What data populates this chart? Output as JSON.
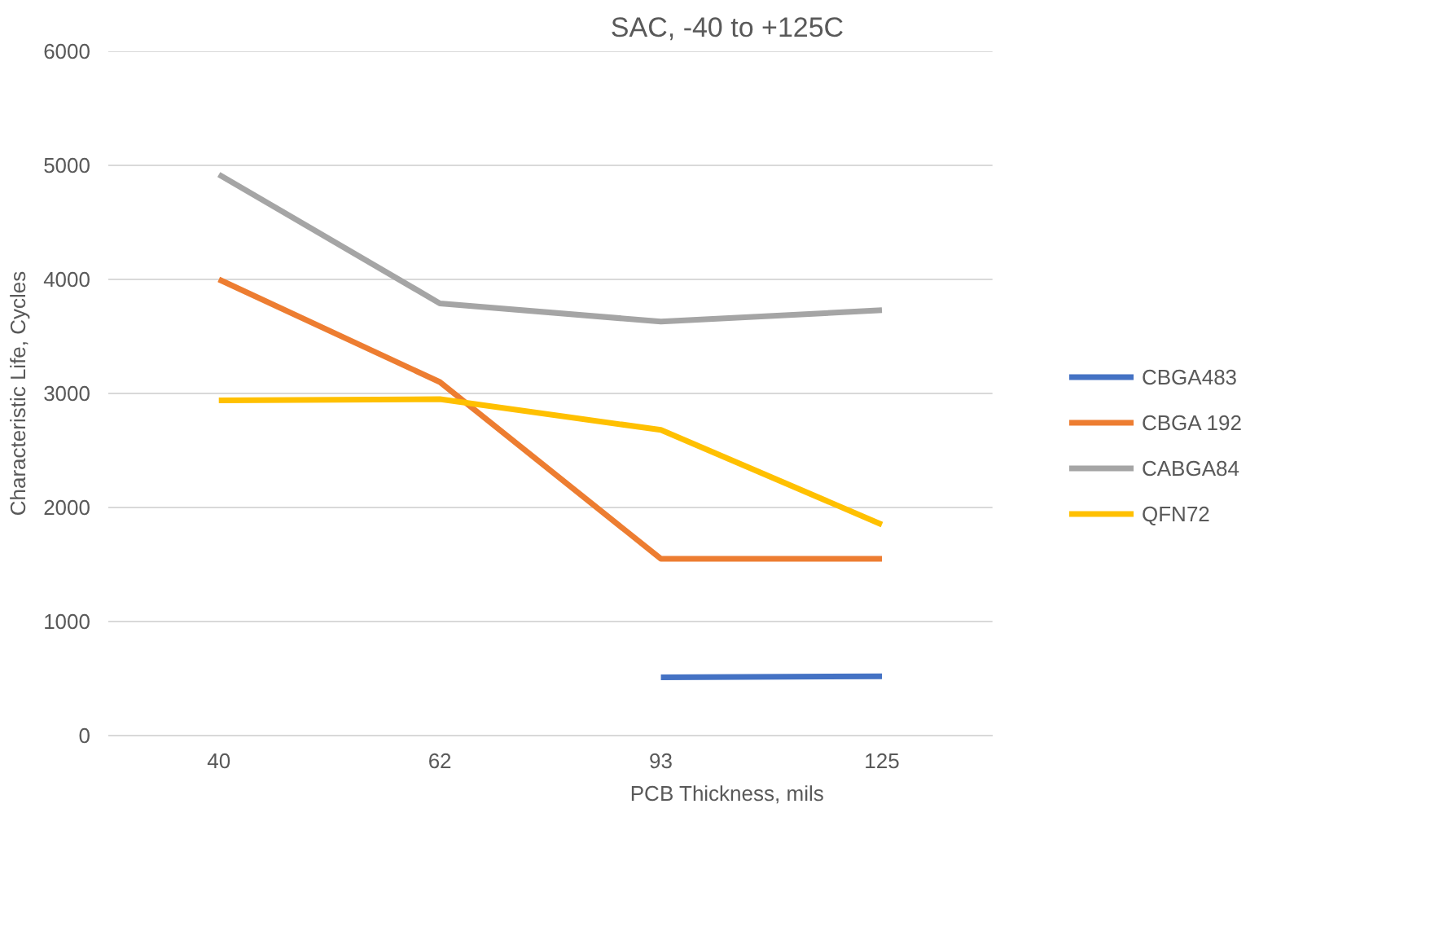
{
  "chart_data": {
    "type": "line",
    "title": "SAC, -40 to +125C",
    "xlabel": "PCB Thickness, mils",
    "ylabel": "Characteristic Life, Cycles",
    "categories": [
      "40",
      "62",
      "93",
      "125"
    ],
    "series": [
      {
        "name": "CBGA483",
        "color": "#4472c4",
        "values": [
          null,
          null,
          510,
          520
        ]
      },
      {
        "name": "CBGA 192",
        "color": "#ed7d31",
        "values": [
          4000,
          3100,
          1550,
          1550
        ]
      },
      {
        "name": "CABGA84",
        "color": "#a5a5a5",
        "values": [
          4920,
          3790,
          3630,
          3730
        ]
      },
      {
        "name": "QFN72",
        "color": "#ffc000",
        "values": [
          2940,
          2950,
          2680,
          1850
        ]
      }
    ],
    "ylim": [
      0,
      6000
    ],
    "yticks": [
      0,
      1000,
      2000,
      3000,
      4000,
      5000,
      6000
    ],
    "grid": "y",
    "legend": "right",
    "marker": "none",
    "line_style": "solid"
  }
}
